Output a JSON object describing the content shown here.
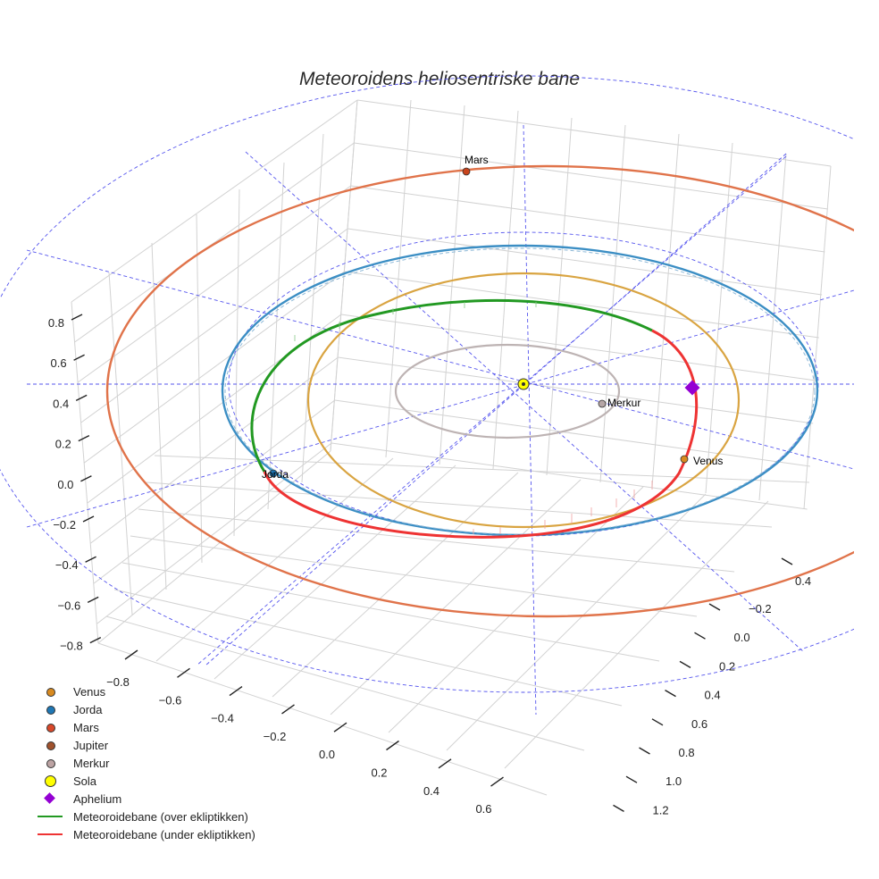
{
  "chart_data": {
    "type": "3d-orbit-plot",
    "title": "Meteoroidens heliosentriske bane",
    "x_axis": {
      "ticks": [
        "−0.8",
        "−0.6",
        "−0.4",
        "−0.2",
        "0.0",
        "0.2",
        "0.4",
        "0.6"
      ]
    },
    "y_axis": {
      "ticks": [
        "−0.2",
        "0.0",
        "0.2",
        "0.4",
        "0.6",
        "0.8",
        "1.0",
        "1.2"
      ],
      "extra_tick": "0.4"
    },
    "z_axis": {
      "ticks": [
        "0.8",
        "0.6",
        "0.4",
        "0.2",
        "0.0",
        "−0.2",
        "−0.4",
        "−0.6",
        "−0.8"
      ]
    },
    "orbits": [
      {
        "name": "Merkur",
        "radius_au": 0.39,
        "color": "#bdb3b3"
      },
      {
        "name": "Venus",
        "radius_au": 0.72,
        "color": "#d9a441"
      },
      {
        "name": "Jorda",
        "radius_au": 1.0,
        "color": "#3b8ec4"
      },
      {
        "name": "Mars",
        "radius_au": 1.52,
        "color": "#e0734a"
      },
      {
        "name": "Meteoroidebane (over ekliptikken)",
        "color": "#229922"
      },
      {
        "name": "Meteoroidebane (under ekliptikken)",
        "color": "#ee3333"
      }
    ],
    "points": [
      {
        "name": "Mars",
        "label": "Mars",
        "color": "#c8441c"
      },
      {
        "name": "Merkur",
        "label": "Merkur",
        "color": "#b5a6a6"
      },
      {
        "name": "Venus",
        "label": "Venus",
        "color": "#d88a20"
      },
      {
        "name": "Jorda",
        "label": "Jorda",
        "color": "#1f77b4"
      },
      {
        "name": "Sola",
        "label": "",
        "color": "#ffff00"
      },
      {
        "name": "Aphelium",
        "label": "",
        "color": "#9400d3"
      }
    ],
    "legend": [
      {
        "label": "Venus",
        "marker": "dot",
        "color": "#d88a20"
      },
      {
        "label": "Jorda",
        "marker": "dot",
        "color": "#1f77b4"
      },
      {
        "label": "Mars",
        "marker": "dot",
        "color": "#d9482a"
      },
      {
        "label": "Jupiter",
        "marker": "dot",
        "color": "#a0522d"
      },
      {
        "label": "Merkur",
        "marker": "dot",
        "color": "#bca3a3"
      },
      {
        "label": "Sola",
        "marker": "bigdot",
        "color": "#ffff00"
      },
      {
        "label": "Aphelium",
        "marker": "diamond",
        "color": "#9400d3"
      },
      {
        "label": "Meteoroidebane (over ekliptikken)",
        "marker": "line",
        "color": "#229922"
      },
      {
        "label": "Meteoroidebane (under ekliptikken)",
        "marker": "line",
        "color": "#ee3333"
      }
    ],
    "legend_position": "bottom-left"
  }
}
